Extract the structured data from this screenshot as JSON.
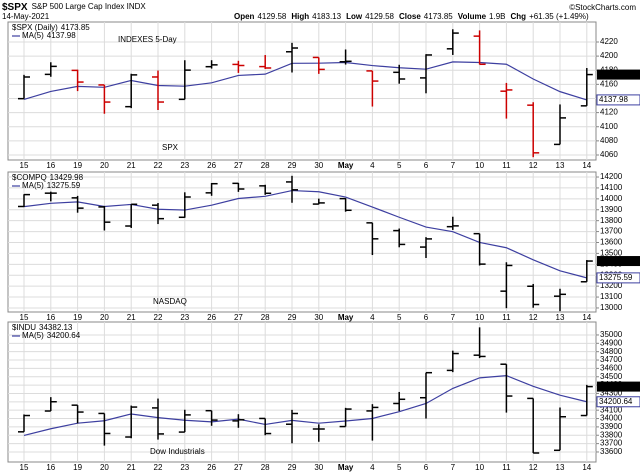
{
  "header": {
    "symbol": "$SPX",
    "name": "S&P 500 Large Cap Index INDX",
    "date": "14-May-2021",
    "quote": [
      {
        "label": "Open",
        "value": "4129.58"
      },
      {
        "label": "High",
        "value": "4183.13"
      },
      {
        "label": "Low",
        "value": "4129.58"
      },
      {
        "label": "Close",
        "value": "4173.85"
      },
      {
        "label": "Volume",
        "value": "1.9B"
      },
      {
        "label": "Chg",
        "value": "+61.35 (+1.49%)"
      }
    ],
    "credit": "©StockCharts.com"
  },
  "chart_data": [
    {
      "type": "ohlc",
      "categories": [
        "15",
        "16",
        "19",
        "20",
        "21",
        "22",
        "23",
        "26",
        "27",
        "28",
        "29",
        "30",
        "May",
        "4",
        "5",
        "6",
        "7",
        "10",
        "11",
        "12",
        "13",
        "14"
      ],
      "series": [
        {
          "name": "$SPX (Daily)",
          "open": [
            4139.76,
            4174.14,
            4179.8,
            4159.18,
            4128.42,
            4170.46,
            4138.78,
            4185.03,
            4188.25,
            4185.14,
            4206.14,
            4198.1,
            4191.98,
            4179.04,
            4177.06,
            4169.14,
            4210.34,
            4228.29,
            4150.34,
            4130.55,
            4074.99,
            4129.58
          ],
          "high": [
            4173.49,
            4191.31,
            4180.81,
            4159.18,
            4175.02,
            4179.57,
            4194.17,
            4194.19,
            4193.35,
            4201.53,
            4218.78,
            4198.1,
            4209.39,
            4179.04,
            4187.72,
            4202.7,
            4238.04,
            4236.39,
            4162.04,
            4134.73,
            4131.58,
            4183.13
          ],
          "low": [
            4139.76,
            4170.75,
            4150.47,
            4118.38,
            4126.35,
            4123.69,
            4138.78,
            4182.36,
            4176.22,
            4181.78,
            4176.81,
            4174.85,
            4188.03,
            4128.59,
            4160.94,
            4147.33,
            4201.64,
            4188.13,
            4111.53,
            4056.88,
            4074.99,
            4129.58
          ],
          "close": [
            4170.42,
            4185.47,
            4163.26,
            4134.94,
            4173.42,
            4134.98,
            4180.17,
            4187.62,
            4186.72,
            4183.18,
            4211.47,
            4181.17,
            4192.66,
            4164.66,
            4167.59,
            4201.62,
            4232.6,
            4188.43,
            4152.1,
            4063.04,
            4112.5,
            4173.85
          ],
          "colors": [
            "#000000",
            "#000000",
            "#cc0000",
            "#cc0000",
            "#000000",
            "#cc0000",
            "#000000",
            "#000000",
            "#cc0000",
            "#cc0000",
            "#000000",
            "#cc0000",
            "#000000",
            "#cc0000",
            "#000000",
            "#000000",
            "#000000",
            "#cc0000",
            "#cc0000",
            "#cc0000",
            "#000000",
            "#000000"
          ]
        },
        {
          "name": "MA(5)",
          "color": "#3d3fa0",
          "values": [
            4138.7,
            4150.0,
            4157.1,
            4155.8,
            4165.5,
            4158.4,
            4157.4,
            4162.2,
            4172.6,
            4174.5,
            4189.8,
            4190.0,
            4191.0,
            4186.6,
            4183.5,
            4181.5,
            4191.8,
            4191.0,
            4188.5,
            4167.6,
            4149.7,
            4137.98
          ]
        }
      ],
      "ylim": [
        4052.9,
        4248.3
      ],
      "yticks": [
        4060,
        4080,
        4100,
        4120,
        4140,
        4160,
        4180,
        4200,
        4220
      ],
      "grid": true,
      "annotations": [
        {
          "text": "INDEXES 5-Day",
          "color": "#d42020"
        },
        {
          "text": "SPX",
          "color": "#2030c8"
        }
      ]
    },
    {
      "type": "ohlc",
      "categories": [
        "15",
        "16",
        "19",
        "20",
        "21",
        "22",
        "23",
        "26",
        "27",
        "28",
        "29",
        "30",
        "May",
        "4",
        "5",
        "6",
        "7",
        "10",
        "11",
        "12",
        "13",
        "14"
      ],
      "series": [
        {
          "name": "$COMPQ",
          "color": "#000000",
          "open": [
            13930,
            14052,
            14009,
            13926,
            13751,
            13942,
            13831,
            14055,
            14142,
            14119,
            14155,
            13952,
            14002,
            13780,
            13709,
            13558,
            13745,
            13681,
            13154,
            13199,
            13108,
            13240
          ],
          "high": [
            14042,
            14066,
            14027,
            13935,
            13951,
            13962,
            14060,
            14145,
            14146,
            14129,
            14211,
            14002,
            14007,
            13780,
            13728,
            13649,
            13836,
            13681,
            13419,
            13220,
            13176,
            13439
          ],
          "low": [
            13925,
            13977,
            13873,
            13710,
            13733,
            13769,
            13827,
            14028,
            14064,
            14037,
            13964,
            13950,
            13882,
            13485,
            13556,
            13458,
            13715,
            13389,
            12998,
            13002,
            12970,
            13240
          ],
          "close": [
            14038.76,
            14052.34,
            13914.77,
            13786.27,
            13950.22,
            13818.41,
            14016.81,
            14138.78,
            14090.22,
            14051.03,
            14082.55,
            13962.68,
            13895.12,
            13633.5,
            13582.42,
            13632.84,
            13752.24,
            13401.86,
            13389.43,
            13031.68,
            13124.99,
            13429.98
          ]
        },
        {
          "name": "MA(5)",
          "color": "#3d3fa0",
          "values": [
            13928.6,
            13959.0,
            13972.0,
            13930.0,
            13948.5,
            13904.4,
            13897.3,
            13942.1,
            14002.9,
            14023.1,
            14075.9,
            14065.1,
            14016.3,
            13925.0,
            13831.3,
            13741.3,
            13699.2,
            13600.6,
            13551.8,
            13441.6,
            13340.0,
            13275.59
          ]
        }
      ],
      "ylim": [
        12963,
        14246
      ],
      "yticks": [
        13000,
        13100,
        13200,
        13300,
        13400,
        13500,
        13600,
        13700,
        13800,
        13900,
        14000,
        14100,
        14200
      ],
      "grid": true,
      "annotations": [
        {
          "text": "NASDAQ",
          "color": "#2030c8"
        }
      ]
    },
    {
      "type": "ohlc",
      "categories": [
        "15",
        "16",
        "19",
        "20",
        "21",
        "22",
        "23",
        "26",
        "27",
        "28",
        "29",
        "30",
        "May",
        "4",
        "5",
        "6",
        "7",
        "10",
        "11",
        "12",
        "13",
        "14"
      ],
      "series": [
        {
          "name": "$INDU",
          "color": "#000000",
          "open": [
            33841,
            34090,
            34160,
            34061,
            33779,
            34127,
            33838,
            34094,
            33972,
            34001,
            33932,
            33875,
            33904,
            34091,
            34180,
            34249,
            34576,
            34758,
            34650,
            34241,
            33620,
            34036
          ],
          "high": [
            34049,
            34256,
            34160,
            34061,
            34155,
            34239,
            34105,
            34094,
            34052,
            34001,
            34104,
            33931,
            34128,
            34172,
            34318,
            34549,
            34812,
            35091,
            34650,
            34241,
            34132,
            34403
          ],
          "low": [
            33841,
            34090,
            33943,
            33676,
            33764,
            33748,
            33838,
            33913,
            33889,
            33800,
            33704,
            33722,
            33904,
            33736,
            34089,
            34000,
            34555,
            34723,
            34071,
            33588,
            33620,
            34036
          ],
          "close": [
            34035.99,
            34200.67,
            34077.63,
            33821.3,
            34137.31,
            33815.9,
            34043.49,
            33981.57,
            33984.93,
            33820.38,
            34060.36,
            33874.85,
            34113.23,
            34133.03,
            34230.34,
            34548.53,
            34777.76,
            34742.82,
            34269.16,
            33587.66,
            34021.45,
            34382.13
          ]
        },
        {
          "name": "MA(5)",
          "color": "#3d3fa0",
          "values": [
            33798.0,
            33878.0,
            33944.5,
            33973.3,
            34054.6,
            34010.6,
            33979.1,
            33959.9,
            33992.6,
            33929.3,
            33978.1,
            33944.4,
            33970.8,
            34000.4,
            34082.4,
            34180.0,
            34360.6,
            34486.5,
            34513.7,
            34385.2,
            34279.8,
            34200.64
          ]
        }
      ],
      "ylim": [
        33480,
        35155
      ],
      "yticks": [
        33600,
        33700,
        33800,
        33900,
        34000,
        34100,
        34200,
        34300,
        34400,
        34500,
        34600,
        34700,
        34800,
        34900,
        35000
      ],
      "grid": true,
      "annotations": [
        {
          "text": "Dow Industrials",
          "color": "#2030c8"
        }
      ]
    }
  ]
}
